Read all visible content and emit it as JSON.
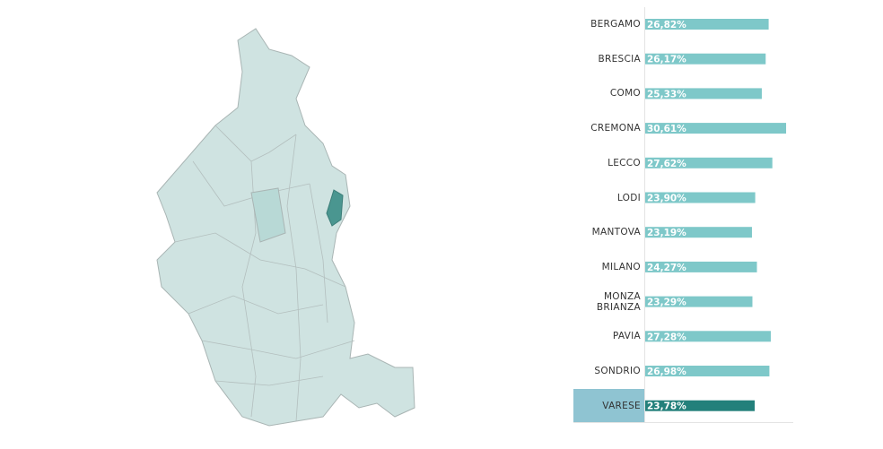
{
  "chart_data": {
    "type": "bar",
    "categories": [
      "BERGAMO",
      "BRESCIA",
      "COMO",
      "CREMONA",
      "LECCO",
      "LODI",
      "MANTOVA",
      "MILANO",
      "MONZA BRIANZA",
      "PAVIA",
      "SONDRIO",
      "VARESE"
    ],
    "values": [
      26.82,
      26.17,
      25.33,
      30.61,
      27.62,
      23.9,
      23.19,
      24.27,
      23.29,
      27.28,
      26.98,
      23.78
    ],
    "value_labels": [
      "26,82%",
      "26,17%",
      "25,33%",
      "30,61%",
      "27,62%",
      "23,90%",
      "23,19%",
      "24,27%",
      "23,29%",
      "27,28%",
      "26,98%",
      "23,78%"
    ],
    "color": "#7ec8c9",
    "highlight_index": 11,
    "highlight_color": "#23807b"
  }
}
